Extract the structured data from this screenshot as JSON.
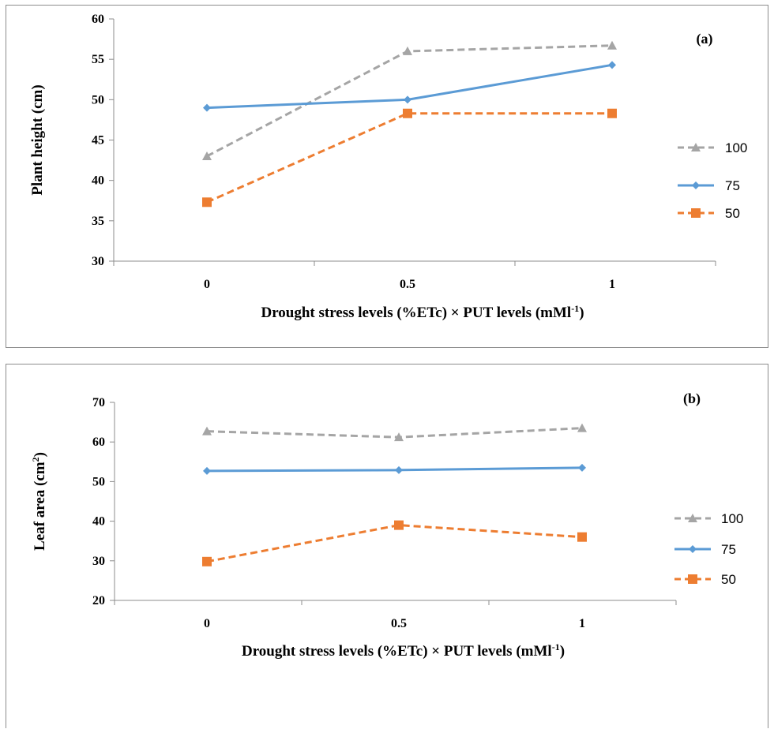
{
  "chart_data": [
    {
      "type": "line",
      "panel_label": "(a)",
      "xlabel": "Drought stress levels (%ETc) × PUT levels (mMl",
      "xlabel_sup": "-1",
      "xlabel_end": ")",
      "ylabel": "Plant height (cm)",
      "categories": [
        "0",
        "0.5",
        "1"
      ],
      "ylim": [
        30,
        60
      ],
      "yticks": [
        "30",
        "35",
        "40",
        "45",
        "50",
        "55",
        "60"
      ],
      "legend_position": "right",
      "series": [
        {
          "name": "100",
          "values": [
            43,
            56,
            56.7
          ],
          "color": "#a5a5a5",
          "dash": "dashed",
          "marker": "triangle"
        },
        {
          "name": "75",
          "values": [
            49,
            50,
            54.3
          ],
          "color": "#5b9bd5",
          "dash": "solid",
          "marker": "diamond"
        },
        {
          "name": "50",
          "values": [
            37.3,
            48.3,
            48.3
          ],
          "color": "#ed7d31",
          "dash": "dashed",
          "marker": "square"
        }
      ]
    },
    {
      "type": "line",
      "panel_label": "(b)",
      "xlabel": "Drought stress levels (%ETc) × PUT levels (mMl",
      "xlabel_sup": "-1",
      "xlabel_end": ")",
      "ylabel": "Leaf area (cm",
      "ylabel_sup": "2",
      "ylabel_end": ")",
      "categories": [
        "0",
        "0.5",
        "1"
      ],
      "ylim": [
        20,
        70
      ],
      "yticks": [
        "20",
        "30",
        "40",
        "50",
        "60",
        "70"
      ],
      "legend_position": "right",
      "series": [
        {
          "name": "100",
          "values": [
            62.7,
            61.2,
            63.5
          ],
          "color": "#a5a5a5",
          "dash": "dashed",
          "marker": "triangle"
        },
        {
          "name": "75",
          "values": [
            52.7,
            52.9,
            53.5
          ],
          "color": "#5b9bd5",
          "dash": "solid",
          "marker": "diamond"
        },
        {
          "name": "50",
          "values": [
            29.8,
            39,
            36
          ],
          "color": "#ed7d31",
          "dash": "dashed",
          "marker": "square"
        }
      ]
    }
  ]
}
